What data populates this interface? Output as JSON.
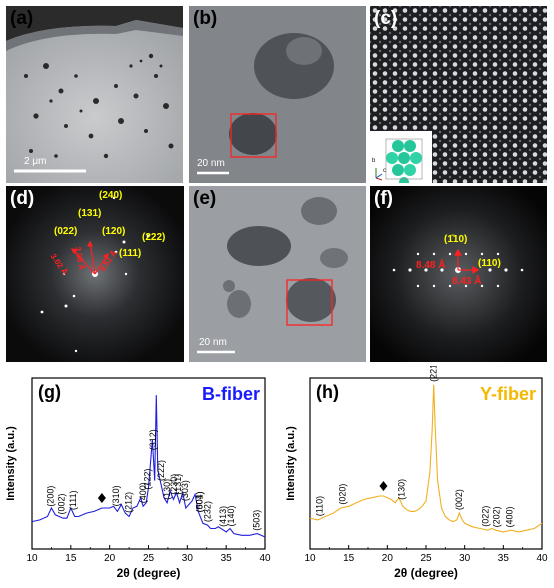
{
  "panels": {
    "a": {
      "label": "(a)",
      "scalebar": "2 μm"
    },
    "b": {
      "label": "(b)",
      "scalebar": "20 nm"
    },
    "c": {
      "label": "(c)",
      "axes": {
        "b": "b",
        "a": "a",
        "c": "c"
      }
    },
    "d": {
      "label": "(d)",
      "planes": [
        "(240)",
        "(131)",
        "(022)",
        "(120)",
        "(222)",
        "(111)"
      ],
      "spacings": [
        "3.02 Å",
        "3.98 Å",
        "6.51 Å"
      ]
    },
    "e": {
      "label": "(e)",
      "scalebar": "20 nm"
    },
    "f": {
      "label": "(f)",
      "planes": [
        "(1̄10)",
        "(110)"
      ],
      "spacings": [
        "8.48 Å",
        "8.43 Å"
      ]
    }
  },
  "colors": {
    "yellow_label": "#ffff00",
    "red_label": "#ff2020",
    "blue_title": "#1a1aff",
    "orange_title": "#f5b800",
    "blue_line": "#1f1fdc",
    "orange_line": "#f0b020"
  },
  "chart_data": [
    {
      "type": "line",
      "panel_label": "(g)",
      "title": "B-fiber",
      "xlabel": "2θ (degree)",
      "ylabel": "Intensity (a.u.)",
      "xlim": [
        10,
        40
      ],
      "xticks": [
        10,
        15,
        20,
        25,
        30,
        35,
        40
      ],
      "series": [
        {
          "x": [
            10,
            11,
            12,
            12.5,
            13,
            13.5,
            14,
            14.5,
            15,
            15.5,
            16,
            17,
            18,
            18.5,
            19,
            19.5,
            20,
            20.5,
            21,
            21.5,
            22,
            22.5,
            23,
            23.5,
            24,
            24.3,
            24.7,
            25,
            25.5,
            25.8,
            26,
            26.2,
            26.5,
            27,
            27.4,
            27.8,
            28.2,
            28.6,
            29,
            29.4,
            29.8,
            30.2,
            30.6,
            31,
            31.4,
            32,
            32.6,
            33,
            33.6,
            34,
            35,
            35.5,
            36,
            37,
            38,
            39,
            39.5,
            40
          ],
          "y": [
            0.16,
            0.17,
            0.19,
            0.24,
            0.2,
            0.19,
            0.18,
            0.18,
            0.24,
            0.19,
            0.19,
            0.21,
            0.22,
            0.23,
            0.24,
            0.24,
            0.24,
            0.25,
            0.22,
            0.26,
            0.21,
            0.19,
            0.24,
            0.25,
            0.3,
            0.25,
            0.27,
            0.36,
            0.64,
            0.4,
            0.9,
            0.46,
            0.4,
            0.3,
            0.27,
            0.34,
            0.29,
            0.33,
            0.27,
            0.33,
            0.24,
            0.26,
            0.28,
            0.32,
            0.22,
            0.15,
            0.14,
            0.12,
            0.12,
            0.13,
            0.1,
            0.12,
            0.09,
            0.08,
            0.08,
            0.09,
            0.08,
            0.07
          ]
        }
      ],
      "annotations": [
        {
          "text": "(200)",
          "x": 12.4
        },
        {
          "text": "(002)",
          "x": 13.8
        },
        {
          "text": "(111)",
          "x": 15.3
        },
        {
          "text": "(310)",
          "x": 20.8
        },
        {
          "text": "(212)",
          "x": 22.4
        },
        {
          "text": "(400)",
          "x": 24.3
        },
        {
          "text": "(122)",
          "x": 24.9
        },
        {
          "text": "(312)",
          "x": 25.6
        },
        {
          "text": "(222)",
          "x": 26.6
        },
        {
          "text": "(130)",
          "x": 27.4
        },
        {
          "text": "(131)",
          "x": 28.8
        },
        {
          "text": "(230)",
          "x": 28.3
        },
        {
          "text": "(303)",
          "x": 29.7
        },
        {
          "text": "(004)",
          "x": 31.6
        },
        {
          "text": "(501)",
          "x": 31.6
        },
        {
          "text": "(232)",
          "x": 32.6
        },
        {
          "text": "(413)",
          "x": 34.6
        },
        {
          "text": "(140)",
          "x": 35.6
        },
        {
          "text": "(503)",
          "x": 38.9
        }
      ],
      "marker": {
        "symbol": "diamond",
        "x": 19
      }
    },
    {
      "type": "line",
      "panel_label": "(h)",
      "title": "Y-fiber",
      "xlabel": "2θ (degree)",
      "ylabel": "Intensity (a.u.)",
      "xlim": [
        10,
        40
      ],
      "xticks": [
        10,
        15,
        20,
        25,
        30,
        35,
        40
      ],
      "series": [
        {
          "x": [
            10,
            11,
            12,
            13,
            14,
            15,
            16,
            17,
            18,
            19,
            19.5,
            20,
            20.5,
            21,
            21.5,
            22,
            22.5,
            23,
            23.5,
            24,
            24.5,
            25,
            25.5,
            25.8,
            26,
            26.2,
            26.5,
            27,
            27.5,
            28,
            28.5,
            29,
            29.3,
            29.7,
            30,
            31,
            32,
            33,
            33.5,
            34,
            35,
            36,
            37,
            38,
            39,
            40
          ],
          "y": [
            0.18,
            0.17,
            0.19,
            0.21,
            0.24,
            0.25,
            0.27,
            0.29,
            0.3,
            0.31,
            0.31,
            0.3,
            0.29,
            0.27,
            0.3,
            0.25,
            0.23,
            0.22,
            0.22,
            0.23,
            0.25,
            0.28,
            0.45,
            0.7,
            0.96,
            0.7,
            0.4,
            0.24,
            0.19,
            0.17,
            0.16,
            0.17,
            0.21,
            0.17,
            0.15,
            0.13,
            0.12,
            0.11,
            0.12,
            0.11,
            0.1,
            0.11,
            0.1,
            0.11,
            0.12,
            0.15
          ]
        }
      ],
      "annotations": [
        {
          "text": "(110)",
          "x": 11.2
        },
        {
          "text": "(020)",
          "x": 14.2
        },
        {
          "text": "(130)",
          "x": 21.8
        },
        {
          "text": "(221)",
          "x": 26.0
        },
        {
          "text": "(002)",
          "x": 29.3
        },
        {
          "text": "(022)",
          "x": 32.7
        },
        {
          "text": "(202)",
          "x": 34.1
        },
        {
          "text": "(400)",
          "x": 35.8
        }
      ],
      "marker": {
        "symbol": "diamond",
        "x": 19.5
      }
    }
  ]
}
